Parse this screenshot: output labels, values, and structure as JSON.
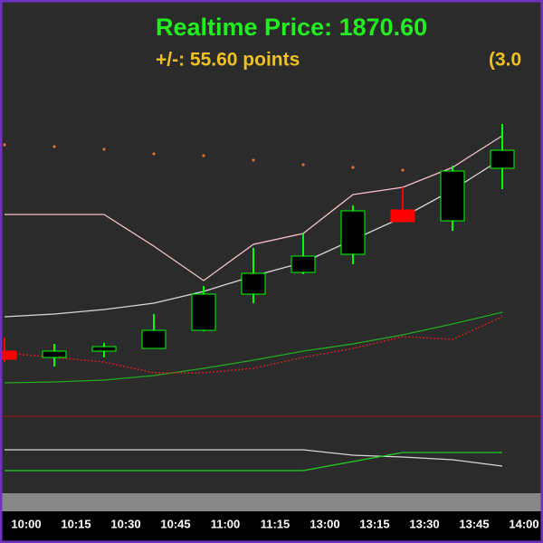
{
  "chart_data": [
    {
      "type": "candlestick",
      "title": "Realtime Price: 1870.60",
      "subtitle": "+/-: 55.60 points",
      "annotation": "(3.0",
      "categories": [
        "10:00",
        "10:15",
        "10:30",
        "10:45",
        "11:00",
        "11:15",
        "13:00",
        "13:15",
        "13:30",
        "13:45",
        "14:00"
      ],
      "open": [
        212,
        205,
        212,
        215,
        235,
        275,
        299,
        319,
        368,
        356,
        414
      ],
      "high": [
        227,
        220,
        221,
        253,
        284,
        326,
        342,
        373,
        393,
        417,
        463
      ],
      "low": [
        200,
        195,
        205,
        215,
        234,
        265,
        297,
        308,
        355,
        345,
        391
      ],
      "close": [
        203,
        212,
        217,
        235,
        275,
        298,
        317,
        367,
        355,
        411,
        434
      ],
      "up_color": "#00ff00",
      "down_color": "#ff0000",
      "series": [
        {
          "color": "#f4c2c8",
          "style": "solid",
          "values": [
            363,
            363,
            363,
            328,
            290,
            330,
            342,
            385,
            393,
            415,
            450
          ]
        },
        {
          "color": "#d8d8d8",
          "style": "solid",
          "values": [
            250,
            253,
            258,
            265,
            278,
            295,
            310,
            335,
            360,
            390,
            425
          ]
        },
        {
          "color": "#22aa22",
          "style": "solid",
          "values": [
            177,
            178,
            180,
            185,
            193,
            202,
            212,
            220,
            230,
            242,
            255
          ]
        },
        {
          "color": "#cc2222",
          "style": "dotted",
          "values": [
            210,
            205,
            200,
            188,
            188,
            193,
            205,
            215,
            228,
            225,
            250
          ]
        },
        {
          "color": "#e07030",
          "style": "dots",
          "values": [
            440,
            438,
            435,
            430,
            428,
            423,
            418,
            415,
            412,
            null,
            null
          ]
        }
      ],
      "ylim": [
        55,
        600
      ]
    },
    {
      "type": "line",
      "series": [
        {
          "color": "#d8d8d8",
          "values": [
            48,
            48,
            48,
            48,
            48,
            48,
            48,
            42,
            40,
            37,
            30
          ]
        },
        {
          "color": "#22cc22",
          "values": [
            25,
            25,
            25,
            25,
            25,
            25,
            25,
            35,
            45,
            45,
            45
          ]
        }
      ],
      "ylim": [
        0,
        85
      ]
    }
  ]
}
